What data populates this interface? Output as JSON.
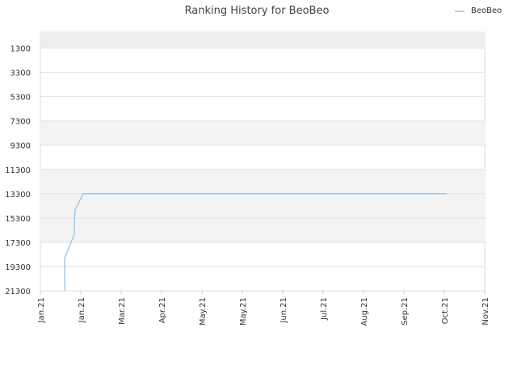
{
  "chart_data": {
    "type": "line",
    "title": "Ranking History for BeoBeo",
    "x": [
      0.6,
      0.6,
      0.84,
      0.84,
      0.86,
      1.06,
      10.06
    ],
    "series": [
      {
        "name": "BeoBeo",
        "color": "#90c4ec",
        "values": [
          21300,
          18640,
          16640,
          15640,
          14640,
          13300,
          13300
        ]
      }
    ],
    "xlim": [
      0,
      11
    ],
    "xticks": [
      {
        "value": 0,
        "label": "Jan.21"
      },
      {
        "value": 1,
        "label": "Jan.21"
      },
      {
        "value": 2,
        "label": "Mar.21"
      },
      {
        "value": 3,
        "label": "Apr.21"
      },
      {
        "value": 4,
        "label": "May.21"
      },
      {
        "value": 5,
        "label": "May.21"
      },
      {
        "value": 6,
        "label": "Jun.21"
      },
      {
        "value": 7,
        "label": "Jul.21"
      },
      {
        "value": 8,
        "label": "Aug.21"
      },
      {
        "value": 9,
        "label": "Sep.21"
      },
      {
        "value": 10,
        "label": "Oct.21"
      },
      {
        "value": 11,
        "label": "Nov.21"
      }
    ],
    "ylim": [
      21300,
      0
    ],
    "yticks": [
      1300,
      3300,
      5300,
      7300,
      9300,
      11300,
      13300,
      15300,
      17300,
      19300,
      21300
    ],
    "grid": true,
    "legend": "top-right"
  }
}
